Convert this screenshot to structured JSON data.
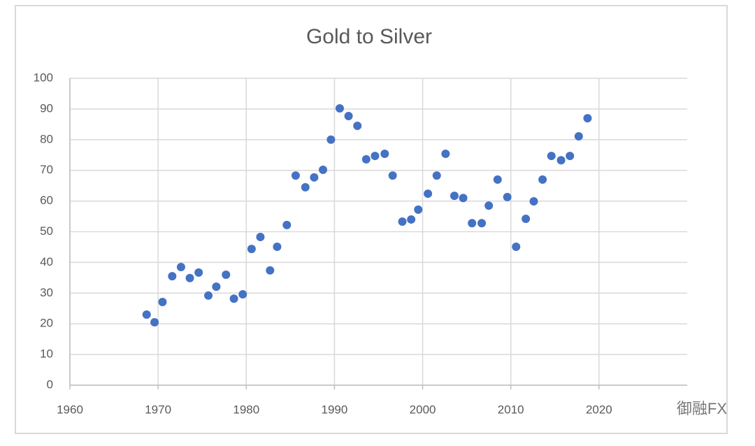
{
  "chart_data": {
    "type": "scatter",
    "title": "Gold to Silver",
    "color": "#4472c4",
    "grid": true,
    "x": [
      1968.7,
      1969.6,
      1970.5,
      1971.6,
      1972.6,
      1973.6,
      1974.6,
      1975.7,
      1976.6,
      1977.7,
      1978.6,
      1979.6,
      1980.6,
      1981.6,
      1982.7,
      1983.5,
      1984.6,
      1985.6,
      1986.7,
      1987.7,
      1988.7,
      1989.6,
      1990.6,
      1991.6,
      1992.6,
      1993.6,
      1994.6,
      1995.7,
      1996.6,
      1997.7,
      1998.7,
      1999.5,
      2000.6,
      2001.6,
      2002.6,
      2003.6,
      2004.6,
      2005.6,
      2006.7,
      2007.5,
      2008.5,
      2009.6,
      2010.6,
      2011.7,
      2012.6,
      2013.6,
      2014.6,
      2015.7,
      2016.7,
      2017.7,
      2018.7
    ],
    "values": [
      23.0,
      20.5,
      27.1,
      35.5,
      38.5,
      34.9,
      36.7,
      29.2,
      32.1,
      36.0,
      28.2,
      29.6,
      44.4,
      48.3,
      37.4,
      45.1,
      52.2,
      68.3,
      64.5,
      67.7,
      70.2,
      80.0,
      90.2,
      87.7,
      84.5,
      73.6,
      74.7,
      75.4,
      68.3,
      53.3,
      54.0,
      57.2,
      62.4,
      68.3,
      75.4,
      61.7,
      61.0,
      52.8,
      52.8,
      58.5,
      67.0,
      61.3,
      45.1,
      54.2,
      59.9,
      67.0,
      74.7,
      73.3,
      74.7,
      81.1,
      87.0
    ],
    "xlim": [
      1960,
      2030
    ],
    "xticks": [
      1960,
      1970,
      1980,
      1990,
      2000,
      2010,
      2020
    ],
    "ylim": [
      0,
      100
    ],
    "yticks": [
      0,
      10,
      20,
      30,
      40,
      50,
      60,
      70,
      80,
      90,
      100
    ]
  },
  "watermark": "御融FX"
}
